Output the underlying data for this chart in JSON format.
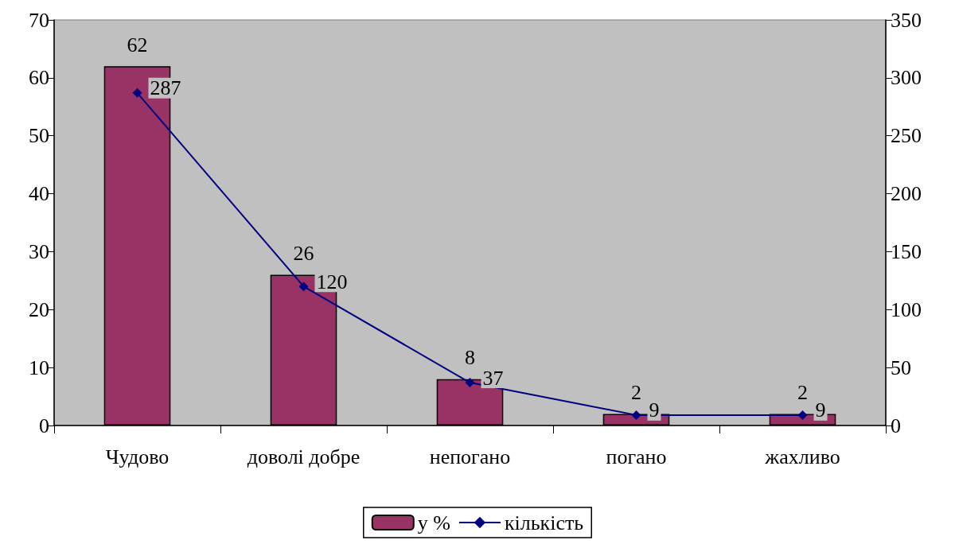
{
  "chart_data": {
    "type": "bar",
    "categories": [
      "Чудово",
      "доволі добре",
      "непогано",
      "погано",
      "жахливо"
    ],
    "series": [
      {
        "name": "у %",
        "color": "#993366",
        "values": [
          62,
          26,
          8,
          2,
          2
        ]
      },
      {
        "name": "кількість",
        "type": "line",
        "axis": "y2",
        "color": "#000080",
        "marker": "diamond",
        "values": [
          287,
          120,
          37,
          9,
          9
        ]
      }
    ],
    "ylim": [
      0,
      70
    ],
    "yticks": [
      0,
      10,
      20,
      30,
      40,
      50,
      60,
      70
    ],
    "y2lim": [
      0,
      350
    ],
    "y2ticks": [
      0,
      50,
      100,
      150,
      200,
      250,
      300,
      350
    ],
    "data_labels": true,
    "grid": false,
    "legend": "bottom"
  }
}
